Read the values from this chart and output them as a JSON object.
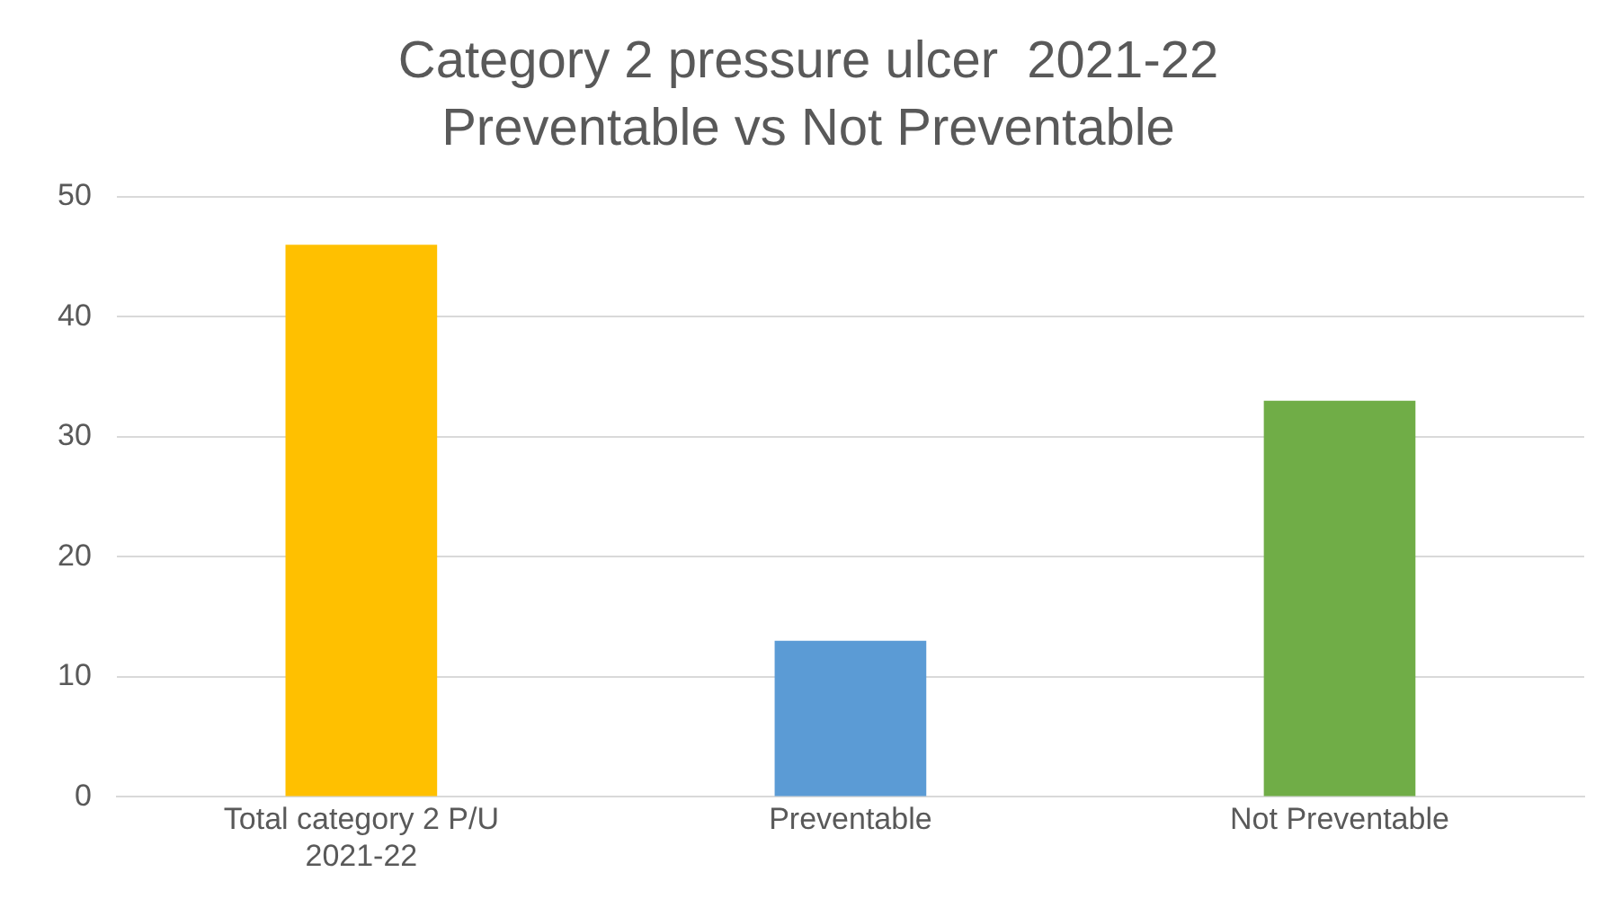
{
  "chart_data": {
    "type": "bar",
    "title": "Category 2 pressure ulcer  2021-22\nPreventable vs Not Preventable",
    "categories": [
      "Total category 2 P/U 2021-22",
      "Preventable",
      "Not Preventable"
    ],
    "values": [
      46,
      13,
      33
    ],
    "colors": [
      "#ffc000",
      "#5b9bd5",
      "#70ad47"
    ],
    "ylim": [
      0,
      50
    ],
    "yticks": [
      0,
      10,
      20,
      30,
      40,
      50
    ],
    "grid": "y"
  }
}
